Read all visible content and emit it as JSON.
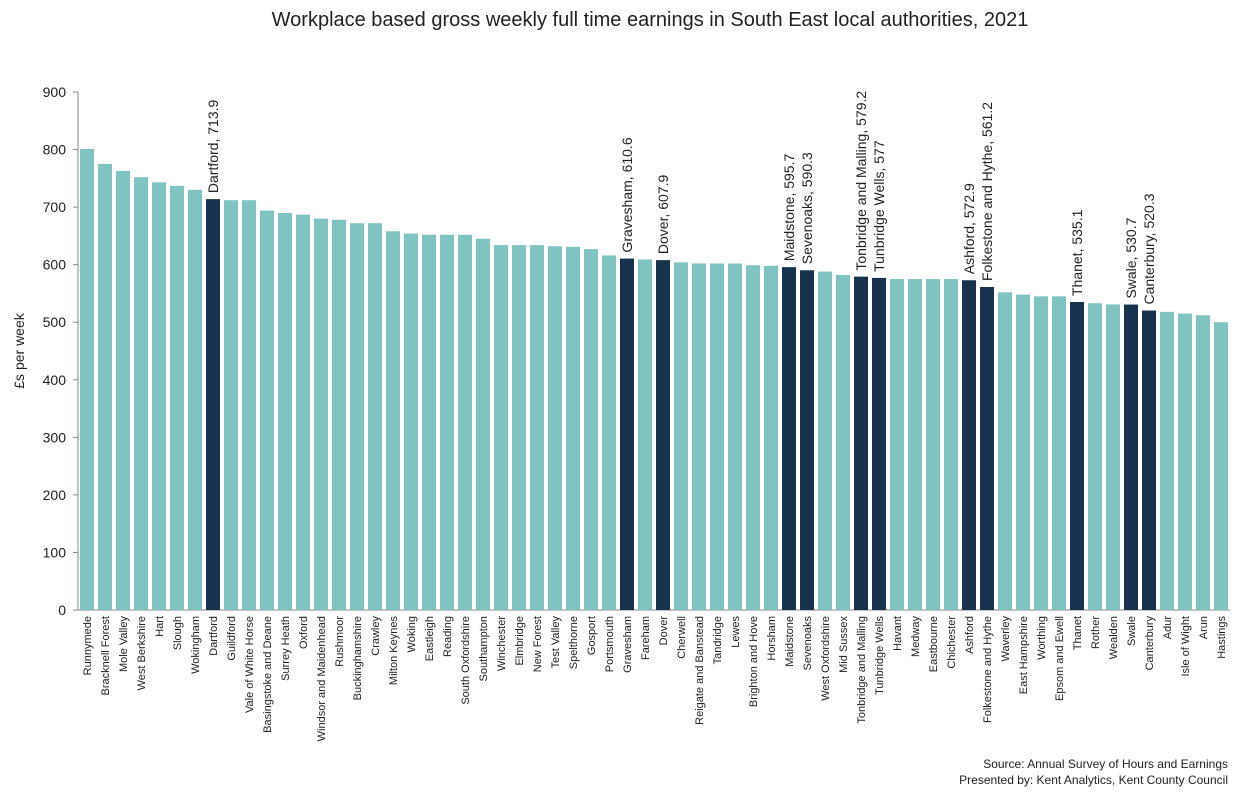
{
  "chart_data": {
    "type": "bar",
    "title": "Workplace based gross weekly full time earnings in South East local authorities, 2021",
    "y_label": "£s per week",
    "source": "Source: Annual Survey of Hours and Earnings",
    "presented_by": "Presented by: Kent Analytics, Kent County Council",
    "ylim": [
      0,
      900
    ],
    "yticks": [
      0,
      100,
      200,
      300,
      400,
      500,
      600,
      700,
      800,
      900
    ],
    "grid": false,
    "categories": [
      "Runnymede",
      "Bracknell Forest",
      "Mole Valley",
      "West Berkshire",
      "Hart",
      "Slough",
      "Wokingham",
      "Dartford",
      "Guildford",
      "Vale of White Horse",
      "Basingstoke and Deane",
      "Surrey Heath",
      "Oxford",
      "Windsor and Maidenhead",
      "Rushmoor",
      "Buckinghamshire",
      "Crawley",
      "Milton Keynes",
      "Woking",
      "Eastleigh",
      "Reading",
      "South Oxfordshire",
      "Southampton",
      "Winchester",
      "Elmbridge",
      "New Forest",
      "Test Valley",
      "Spelthorne",
      "Gosport",
      "Portsmouth",
      "Gravesham",
      "Fareham",
      "Dover",
      "Cherwell",
      "Reigate and Banstead",
      "Tandridge",
      "Lewes",
      "Brighton and Hove",
      "Horsham",
      "Maidstone",
      "Sevenoaks",
      "West Oxfordshire",
      "Mid Sussex",
      "Tonbridge and Malling",
      "Tunbridge Wells",
      "Havant",
      "Medway",
      "Eastbourne",
      "Chichester",
      "Ashford",
      "Folkestone and Hythe",
      "Waverley",
      "East Hampshire",
      "Worthing",
      "Epsom and Ewell",
      "Thanet",
      "Rother",
      "Wealden",
      "Swale",
      "Canterbury",
      "Adur",
      "Isle of Wight",
      "Arun",
      "Hastings"
    ],
    "values": [
      801,
      775,
      763,
      752,
      743,
      737,
      730,
      713.9,
      712,
      712,
      694,
      690,
      687,
      680,
      678,
      672,
      672,
      658,
      654,
      652,
      652,
      652,
      645,
      634,
      634,
      634,
      632,
      631,
      627,
      616,
      610.6,
      609,
      607.9,
      604,
      602,
      602,
      602,
      599,
      598,
      595.7,
      590.3,
      588,
      582,
      579.2,
      577,
      575,
      575,
      575,
      575,
      572.9,
      561.2,
      552,
      548,
      545,
      545,
      535.1,
      533,
      531,
      530.7,
      520.3,
      518,
      515,
      512,
      500
    ],
    "value_labels": [
      null,
      null,
      null,
      null,
      null,
      null,
      null,
      "Dartford, 713.9",
      null,
      null,
      null,
      null,
      null,
      null,
      null,
      null,
      null,
      null,
      null,
      null,
      null,
      null,
      null,
      null,
      null,
      null,
      null,
      null,
      null,
      null,
      "Gravesham, 610.6",
      null,
      "Dover, 607.9",
      null,
      null,
      null,
      null,
      null,
      null,
      "Maidstone, 595.7",
      "Sevenoaks, 590.3",
      null,
      null,
      "Tonbridge and Malling, 579.2",
      "Tunbridge Wells, 577",
      null,
      null,
      null,
      null,
      "Ashford, 572.9",
      "Folkestone and Hythe, 561.2",
      null,
      null,
      null,
      null,
      "Thanet, 535.1",
      null,
      null,
      "Swale, 530.7",
      "Canterbury, 520.3",
      null,
      null,
      null,
      null
    ],
    "colors": [
      "#7fc4c1",
      "#7fc4c1",
      "#7fc4c1",
      "#7fc4c1",
      "#7fc4c1",
      "#7fc4c1",
      "#7fc4c1",
      "#17324d",
      "#7fc4c1",
      "#7fc4c1",
      "#7fc4c1",
      "#7fc4c1",
      "#7fc4c1",
      "#7fc4c1",
      "#7fc4c1",
      "#7fc4c1",
      "#7fc4c1",
      "#7fc4c1",
      "#7fc4c1",
      "#7fc4c1",
      "#7fc4c1",
      "#7fc4c1",
      "#7fc4c1",
      "#7fc4c1",
      "#7fc4c1",
      "#7fc4c1",
      "#7fc4c1",
      "#7fc4c1",
      "#7fc4c1",
      "#7fc4c1",
      "#17324d",
      "#7fc4c1",
      "#17324d",
      "#7fc4c1",
      "#7fc4c1",
      "#7fc4c1",
      "#7fc4c1",
      "#7fc4c1",
      "#7fc4c1",
      "#17324d",
      "#17324d",
      "#7fc4c1",
      "#7fc4c1",
      "#17324d",
      "#17324d",
      "#7fc4c1",
      "#7fc4c1",
      "#7fc4c1",
      "#7fc4c1",
      "#17324d",
      "#17324d",
      "#7fc4c1",
      "#7fc4c1",
      "#7fc4c1",
      "#7fc4c1",
      "#17324d",
      "#7fc4c1",
      "#7fc4c1",
      "#17324d",
      "#17324d",
      "#7fc4c1",
      "#7fc4c1",
      "#7fc4c1",
      "#7fc4c1"
    ]
  }
}
